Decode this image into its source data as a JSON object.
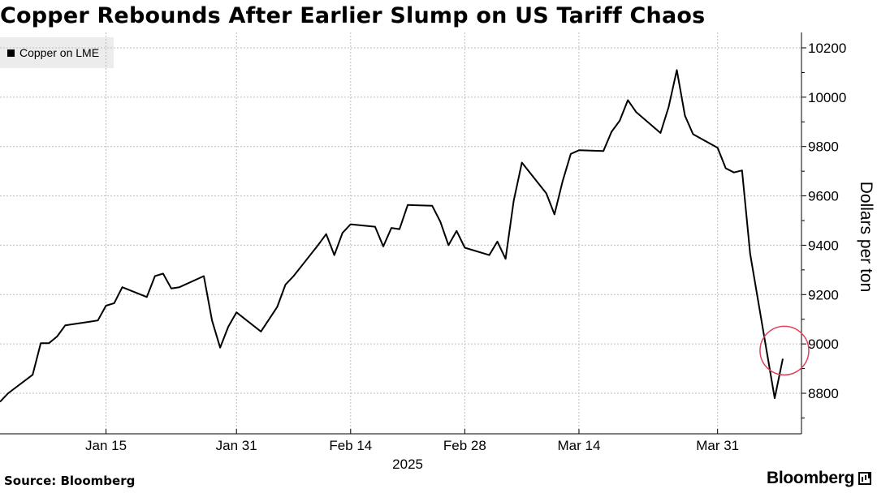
{
  "header": {
    "title": "Copper Rebounds After Earlier Slump on US Tariff Chaos"
  },
  "legend": {
    "label": "Copper on LME"
  },
  "footer": {
    "source": "Source: Bloomberg",
    "brand": "Bloomberg"
  },
  "colors": {
    "line": "#000000",
    "highlight": "#e0425a",
    "grid": "#bdbdbd",
    "legend_bg": "#ececec"
  },
  "chart_data": {
    "type": "line",
    "title": "Copper Rebounds After Earlier Slump on US Tariff Chaos",
    "xlabel": "",
    "ylabel": "Dollars per ton",
    "year_label": "2025",
    "ylim": [
      8650,
      10230
    ],
    "yticks": [
      8800,
      9000,
      9200,
      9400,
      9600,
      9800,
      10000,
      10200
    ],
    "xlim": [
      "2025-01-02",
      "2025-04-08"
    ],
    "xticks": [
      {
        "date": "2025-01-15",
        "label": "Jan 15"
      },
      {
        "date": "2025-01-31",
        "label": "Jan 31"
      },
      {
        "date": "2025-02-14",
        "label": "Feb 14"
      },
      {
        "date": "2025-02-28",
        "label": "Feb 28"
      },
      {
        "date": "2025-03-14",
        "label": "Mar 14"
      },
      {
        "date": "2025-03-31",
        "label": "Mar 31"
      }
    ],
    "grid": true,
    "legend_position": "top-left",
    "series": [
      {
        "name": "Copper on LME",
        "points": [
          [
            "2025-01-02",
            8765
          ],
          [
            "2025-01-03",
            8800
          ],
          [
            "2025-01-06",
            8875
          ],
          [
            "2025-01-07",
            9003
          ],
          [
            "2025-01-08",
            9003
          ],
          [
            "2025-01-09",
            9030
          ],
          [
            "2025-01-10",
            9075
          ],
          [
            "2025-01-13",
            9090
          ],
          [
            "2025-01-14",
            9095
          ],
          [
            "2025-01-15",
            9155
          ],
          [
            "2025-01-16",
            9165
          ],
          [
            "2025-01-17",
            9230
          ],
          [
            "2025-01-20",
            9190
          ],
          [
            "2025-01-21",
            9275
          ],
          [
            "2025-01-22",
            9285
          ],
          [
            "2025-01-23",
            9225
          ],
          [
            "2025-01-24",
            9230
          ],
          [
            "2025-01-27",
            9275
          ],
          [
            "2025-01-28",
            9095
          ],
          [
            "2025-01-29",
            8985
          ],
          [
            "2025-01-30",
            9070
          ],
          [
            "2025-01-31",
            9128
          ],
          [
            "2025-02-03",
            9050
          ],
          [
            "2025-02-04",
            9100
          ],
          [
            "2025-02-05",
            9150
          ],
          [
            "2025-02-06",
            9240
          ],
          [
            "2025-02-07",
            9275
          ],
          [
            "2025-02-10",
            9400
          ],
          [
            "2025-02-11",
            9445
          ],
          [
            "2025-02-12",
            9360
          ],
          [
            "2025-02-13",
            9450
          ],
          [
            "2025-02-14",
            9485
          ],
          [
            "2025-02-17",
            9475
          ],
          [
            "2025-02-18",
            9395
          ],
          [
            "2025-02-19",
            9470
          ],
          [
            "2025-02-20",
            9465
          ],
          [
            "2025-02-21",
            9563
          ],
          [
            "2025-02-24",
            9560
          ],
          [
            "2025-02-25",
            9495
          ],
          [
            "2025-02-26",
            9400
          ],
          [
            "2025-02-27",
            9458
          ],
          [
            "2025-02-28",
            9390
          ],
          [
            "2025-03-03",
            9360
          ],
          [
            "2025-03-04",
            9415
          ],
          [
            "2025-03-05",
            9345
          ],
          [
            "2025-03-06",
            9580
          ],
          [
            "2025-03-07",
            9735
          ],
          [
            "2025-03-10",
            9610
          ],
          [
            "2025-03-11",
            9525
          ],
          [
            "2025-03-12",
            9660
          ],
          [
            "2025-03-13",
            9770
          ],
          [
            "2025-03-14",
            9785
          ],
          [
            "2025-03-17",
            9782
          ],
          [
            "2025-03-18",
            9860
          ],
          [
            "2025-03-19",
            9905
          ],
          [
            "2025-03-20",
            9988
          ],
          [
            "2025-03-21",
            9940
          ],
          [
            "2025-03-24",
            9855
          ],
          [
            "2025-03-25",
            9960
          ],
          [
            "2025-03-26",
            10110
          ],
          [
            "2025-03-27",
            9925
          ],
          [
            "2025-03-28",
            9850
          ],
          [
            "2025-03-31",
            9795
          ],
          [
            "2025-04-01",
            9712
          ],
          [
            "2025-04-02",
            9695
          ],
          [
            "2025-04-03",
            9703
          ],
          [
            "2025-04-04",
            9365
          ],
          [
            "2025-04-07",
            8780
          ],
          [
            "2025-04-08",
            8940
          ]
        ]
      }
    ],
    "annotations": [
      {
        "type": "circle",
        "date": "2025-04-07",
        "value": 8950,
        "color": "#e0425a"
      }
    ]
  }
}
